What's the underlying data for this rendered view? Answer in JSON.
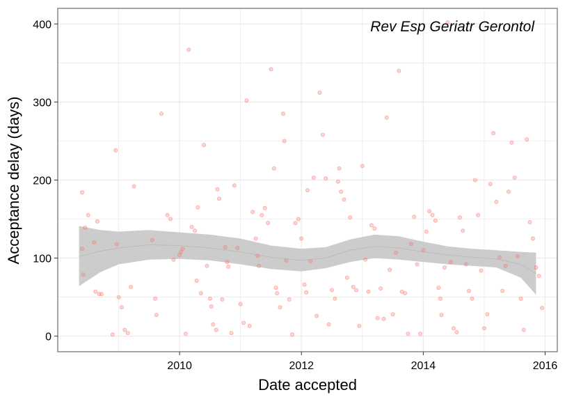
{
  "chart_data": {
    "type": "scatter",
    "annotation": "Rev Esp Geriatr Gerontol",
    "xlabel": "Date accepted",
    "ylabel": "Acceptance delay (days)",
    "xlim": [
      2008.0,
      2016.2
    ],
    "ylim": [
      -20,
      420
    ],
    "x_ticks": [
      2010,
      2012,
      2014,
      2016
    ],
    "y_ticks": [
      0,
      100,
      200,
      300,
      400
    ],
    "grid": true,
    "colors": {
      "points": "#f8766d",
      "band": "#cccccc",
      "smooth_line": "#bbbbbb",
      "grid": "#ebebeb",
      "panel_border": "#7f7f7f"
    },
    "smooth": {
      "x": [
        2008.35,
        2008.7,
        2009.0,
        2009.5,
        2010.0,
        2010.5,
        2011.0,
        2011.5,
        2012.0,
        2012.4,
        2012.8,
        2013.2,
        2013.6,
        2014.0,
        2014.4,
        2014.8,
        2015.2,
        2015.6,
        2015.85
      ],
      "upper": [
        141,
        136,
        134,
        136,
        133,
        130,
        125,
        116,
        112,
        114,
        124,
        130,
        128,
        121,
        115,
        112,
        110,
        108,
        107
      ],
      "lower": [
        64,
        82,
        92,
        98,
        99,
        97,
        92,
        86,
        83,
        87,
        95,
        100,
        98,
        95,
        92,
        90,
        88,
        75,
        53
      ],
      "fit": [
        102,
        109,
        113,
        117,
        116,
        113,
        108,
        101,
        97,
        100,
        110,
        115,
        113,
        108,
        104,
        101,
        99,
        92,
        80
      ]
    },
    "points": [
      [
        2008.4,
        184
      ],
      [
        2008.45,
        139
      ],
      [
        2008.5,
        155
      ],
      [
        2008.4,
        112
      ],
      [
        2008.42,
        79
      ],
      [
        2008.6,
        120
      ],
      [
        2008.65,
        147
      ],
      [
        2008.62,
        57
      ],
      [
        2008.68,
        54
      ],
      [
        2008.72,
        54
      ],
      [
        2008.9,
        2
      ],
      [
        2008.95,
        238
      ],
      [
        2008.97,
        118
      ],
      [
        2009.0,
        50
      ],
      [
        2009.05,
        37
      ],
      [
        2009.1,
        8
      ],
      [
        2009.15,
        4
      ],
      [
        2009.2,
        63
      ],
      [
        2009.25,
        192
      ],
      [
        2009.55,
        123
      ],
      [
        2009.6,
        48
      ],
      [
        2009.62,
        27
      ],
      [
        2009.7,
        285
      ],
      [
        2009.8,
        155
      ],
      [
        2009.85,
        150
      ],
      [
        2009.9,
        98
      ],
      [
        2010.0,
        104
      ],
      [
        2010.02,
        108
      ],
      [
        2010.05,
        112
      ],
      [
        2010.1,
        3
      ],
      [
        2010.15,
        367
      ],
      [
        2010.2,
        140
      ],
      [
        2010.25,
        135
      ],
      [
        2010.28,
        71
      ],
      [
        2010.3,
        165
      ],
      [
        2010.35,
        55
      ],
      [
        2010.4,
        245
      ],
      [
        2010.45,
        90
      ],
      [
        2010.5,
        48
      ],
      [
        2010.52,
        38
      ],
      [
        2010.55,
        15
      ],
      [
        2010.6,
        8
      ],
      [
        2010.62,
        188
      ],
      [
        2010.65,
        176
      ],
      [
        2010.7,
        47
      ],
      [
        2010.75,
        114
      ],
      [
        2010.78,
        95
      ],
      [
        2010.8,
        89
      ],
      [
        2010.85,
        4
      ],
      [
        2010.9,
        193
      ],
      [
        2010.95,
        113
      ],
      [
        2011.0,
        41
      ],
      [
        2011.05,
        17
      ],
      [
        2011.1,
        302
      ],
      [
        2011.15,
        13
      ],
      [
        2011.2,
        159
      ],
      [
        2011.25,
        125
      ],
      [
        2011.28,
        103
      ],
      [
        2011.3,
        90
      ],
      [
        2011.35,
        155
      ],
      [
        2011.4,
        164
      ],
      [
        2011.45,
        145
      ],
      [
        2011.5,
        342
      ],
      [
        2011.55,
        215
      ],
      [
        2011.58,
        62
      ],
      [
        2011.6,
        55
      ],
      [
        2011.65,
        37
      ],
      [
        2011.7,
        285
      ],
      [
        2011.72,
        250
      ],
      [
        2011.75,
        97
      ],
      [
        2011.8,
        47
      ],
      [
        2011.85,
        2
      ],
      [
        2011.9,
        145
      ],
      [
        2011.95,
        150
      ],
      [
        2012.0,
        125
      ],
      [
        2012.05,
        66
      ],
      [
        2012.08,
        56
      ],
      [
        2012.1,
        187
      ],
      [
        2012.15,
        96
      ],
      [
        2012.2,
        203
      ],
      [
        2012.25,
        26
      ],
      [
        2012.3,
        312
      ],
      [
        2012.35,
        258
      ],
      [
        2012.4,
        202
      ],
      [
        2012.45,
        15
      ],
      [
        2012.5,
        59
      ],
      [
        2012.55,
        48
      ],
      [
        2012.6,
        198
      ],
      [
        2012.62,
        215
      ],
      [
        2012.65,
        185
      ],
      [
        2012.7,
        175
      ],
      [
        2012.75,
        75
      ],
      [
        2012.8,
        152
      ],
      [
        2012.85,
        63
      ],
      [
        2012.9,
        59
      ],
      [
        2012.95,
        13
      ],
      [
        2013.0,
        218
      ],
      [
        2013.05,
        98
      ],
      [
        2013.1,
        57
      ],
      [
        2013.15,
        142
      ],
      [
        2013.2,
        138
      ],
      [
        2013.25,
        23
      ],
      [
        2013.3,
        61
      ],
      [
        2013.35,
        22
      ],
      [
        2013.4,
        280
      ],
      [
        2013.45,
        85
      ],
      [
        2013.5,
        28
      ],
      [
        2013.55,
        107
      ],
      [
        2013.6,
        340
      ],
      [
        2013.65,
        57
      ],
      [
        2013.7,
        55
      ],
      [
        2013.75,
        3
      ],
      [
        2013.8,
        118
      ],
      [
        2013.85,
        153
      ],
      [
        2013.9,
        92
      ],
      [
        2013.95,
        3
      ],
      [
        2014.0,
        110
      ],
      [
        2014.05,
        134
      ],
      [
        2014.1,
        160
      ],
      [
        2014.15,
        155
      ],
      [
        2014.2,
        148
      ],
      [
        2014.25,
        62
      ],
      [
        2014.28,
        48
      ],
      [
        2014.3,
        27
      ],
      [
        2014.35,
        88
      ],
      [
        2014.4,
        402
      ],
      [
        2014.45,
        95
      ],
      [
        2014.5,
        10
      ],
      [
        2014.55,
        5
      ],
      [
        2014.6,
        152
      ],
      [
        2014.65,
        135
      ],
      [
        2014.7,
        92
      ],
      [
        2014.75,
        58
      ],
      [
        2014.8,
        48
      ],
      [
        2014.85,
        200
      ],
      [
        2014.9,
        155
      ],
      [
        2014.95,
        84
      ],
      [
        2015.0,
        10
      ],
      [
        2015.05,
        28
      ],
      [
        2015.1,
        195
      ],
      [
        2015.15,
        260
      ],
      [
        2015.2,
        172
      ],
      [
        2015.25,
        101
      ],
      [
        2015.3,
        58
      ],
      [
        2015.35,
        90
      ],
      [
        2015.4,
        185
      ],
      [
        2015.45,
        248
      ],
      [
        2015.5,
        203
      ],
      [
        2015.55,
        102
      ],
      [
        2015.6,
        48
      ],
      [
        2015.65,
        8
      ],
      [
        2015.7,
        252
      ],
      [
        2015.75,
        146
      ],
      [
        2015.8,
        125
      ],
      [
        2015.85,
        88
      ],
      [
        2015.9,
        77
      ],
      [
        2015.95,
        36
      ]
    ]
  }
}
